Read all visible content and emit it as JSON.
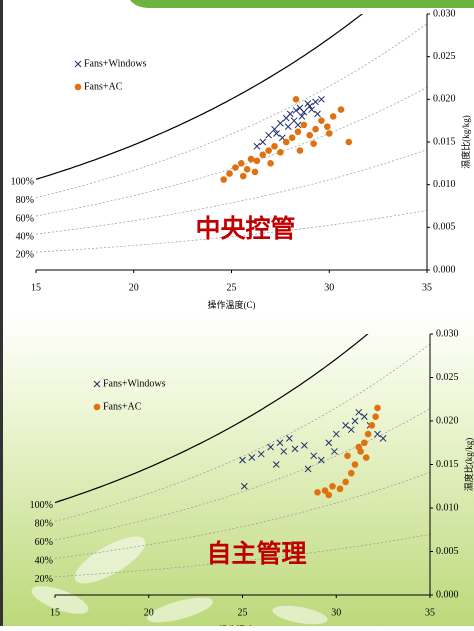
{
  "chart_data": [
    {
      "type": "scatter",
      "annotation": "中央控管",
      "x_label": "操作溫度(C)",
      "y_label": "濕度比(kg/kg)",
      "y_axis_side": "right",
      "xlim": [
        15,
        35
      ],
      "ylim": [
        0,
        0.03
      ],
      "xticks": [
        15,
        20,
        25,
        30,
        35
      ],
      "yticks": [
        {
          "value": 0,
          "label": "0.000"
        },
        {
          "value": 0.005,
          "label": "0.005"
        },
        {
          "value": 0.01,
          "label": "0.010"
        },
        {
          "value": 0.015,
          "label": "0.015"
        },
        {
          "value": 0.02,
          "label": "0.020"
        },
        {
          "value": 0.025,
          "label": "0.025"
        },
        {
          "value": 0.03,
          "label": "0.030"
        }
      ],
      "rh_lines": [
        {
          "value": 100,
          "label": "100%"
        },
        {
          "value": 80,
          "label": "80%"
        },
        {
          "value": 60,
          "label": "60%"
        },
        {
          "value": 40,
          "label": "40%"
        },
        {
          "value": 20,
          "label": "20%"
        }
      ],
      "legend": "top-left",
      "series": [
        {
          "name": "Fans+Windows",
          "color": "#1f2d6b",
          "marker": "x",
          "x": [
            27.2,
            27.5,
            27.8,
            28.0,
            28.3,
            28.5,
            28.7,
            29.0,
            29.3,
            28.2,
            27.9,
            28.6,
            29.1,
            26.6,
            26.9,
            27.3,
            29.6,
            28.9,
            27.6,
            26.3,
            28.4,
            29.4
          ],
          "values": [
            0.0165,
            0.0172,
            0.0178,
            0.0183,
            0.0187,
            0.019,
            0.0185,
            0.0192,
            0.0197,
            0.0175,
            0.0168,
            0.018,
            0.0188,
            0.015,
            0.0158,
            0.016,
            0.02,
            0.0195,
            0.0155,
            0.0145,
            0.017,
            0.0183
          ]
        },
        {
          "name": "Fans+AC",
          "color": "#e07010",
          "marker": "circle",
          "x": [
            24.6,
            24.9,
            25.2,
            25.5,
            25.8,
            26.0,
            26.3,
            26.6,
            26.9,
            27.2,
            27.5,
            27.8,
            28.1,
            28.4,
            28.7,
            29.0,
            29.3,
            29.6,
            29.9,
            30.2,
            30.6,
            31.0,
            25.6,
            26.2,
            27.0,
            28.5,
            29.2,
            28.3,
            30.0
          ],
          "values": [
            0.0106,
            0.0113,
            0.012,
            0.0125,
            0.0118,
            0.013,
            0.0128,
            0.0135,
            0.014,
            0.0145,
            0.0138,
            0.015,
            0.0155,
            0.0162,
            0.017,
            0.0158,
            0.0165,
            0.0175,
            0.0168,
            0.018,
            0.0188,
            0.015,
            0.011,
            0.0115,
            0.0125,
            0.014,
            0.0148,
            0.02,
            0.016
          ]
        }
      ]
    },
    {
      "type": "scatter",
      "annotation": "自主管理",
      "x_label": "操作溫度(C)",
      "y_label": "濕度比(kg/kg)",
      "y_axis_side": "right",
      "xlim": [
        15,
        35
      ],
      "ylim": [
        0,
        0.03
      ],
      "xticks": [
        15,
        20,
        25,
        30,
        35
      ],
      "yticks": [
        {
          "value": 0,
          "label": "0.000"
        },
        {
          "value": 0.005,
          "label": "0.005"
        },
        {
          "value": 0.01,
          "label": "0.010"
        },
        {
          "value": 0.015,
          "label": "0.015"
        },
        {
          "value": 0.02,
          "label": "0.020"
        },
        {
          "value": 0.025,
          "label": "0.025"
        },
        {
          "value": 0.03,
          "label": "0.030"
        }
      ],
      "rh_lines": [
        {
          "value": 100,
          "label": "100%"
        },
        {
          "value": 80,
          "label": "80%"
        },
        {
          "value": 60,
          "label": "60%"
        },
        {
          "value": 40,
          "label": "40%"
        },
        {
          "value": 20,
          "label": "20%"
        }
      ],
      "legend": "top-left",
      "series": [
        {
          "name": "Fans+Windows",
          "color": "#1f2d6b",
          "marker": "x",
          "x": [
            25.0,
            25.5,
            26.0,
            26.5,
            27.0,
            27.5,
            27.2,
            27.8,
            28.3,
            28.8,
            29.2,
            29.6,
            30.0,
            30.5,
            31.0,
            31.5,
            31.8,
            32.2,
            32.5,
            31.2,
            30.8,
            28.5,
            26.8,
            25.1,
            29.9
          ],
          "values": [
            0.0155,
            0.0158,
            0.0162,
            0.017,
            0.0175,
            0.018,
            0.0165,
            0.0168,
            0.0172,
            0.016,
            0.0155,
            0.0175,
            0.0185,
            0.0195,
            0.02,
            0.0205,
            0.0195,
            0.0185,
            0.018,
            0.021,
            0.019,
            0.0145,
            0.015,
            0.0125,
            0.0165
          ]
        },
        {
          "name": "Fans+AC",
          "color": "#e07010",
          "marker": "circle",
          "x": [
            29.0,
            29.4,
            29.8,
            30.2,
            30.5,
            30.8,
            31.0,
            31.3,
            31.5,
            31.7,
            31.9,
            32.1,
            32.2,
            31.6,
            30.6,
            29.6,
            31.2
          ],
          "values": [
            0.0118,
            0.012,
            0.0125,
            0.0122,
            0.013,
            0.014,
            0.015,
            0.0165,
            0.0175,
            0.0185,
            0.0195,
            0.0205,
            0.0215,
            0.0158,
            0.016,
            0.0115,
            0.017
          ]
        }
      ]
    }
  ]
}
